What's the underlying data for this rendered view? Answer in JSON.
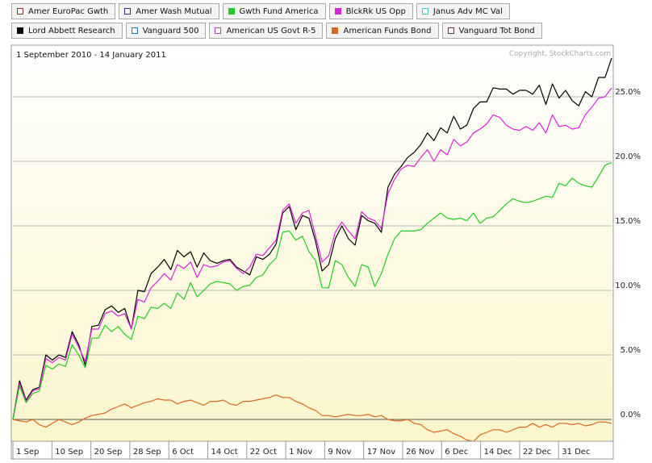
{
  "chart_data": {
    "type": "line",
    "title": "",
    "date_range": "1 September 2010 - 14 January 2011",
    "copyright": "Copyright, StockCharts.com",
    "legend": [
      {
        "name": "Amer EuroPac Gwth",
        "color": "#8b3a2a",
        "filled": false
      },
      {
        "name": "Amer Wash Mutual",
        "color": "#2b2b8a",
        "filled": false
      },
      {
        "name": "Gwth Fund America",
        "color": "#22cc22",
        "filled": true
      },
      {
        "name": "BlckRk US Opp",
        "color": "#dd22dd",
        "filled": true
      },
      {
        "name": "Janus Adv MC Val",
        "color": "#33cccc",
        "filled": false
      },
      {
        "name": "Lord Abbett Research",
        "color": "#000000",
        "filled": true
      },
      {
        "name": "Vanguard 500",
        "color": "#2277aa",
        "filled": false
      },
      {
        "name": "American US Govt R-5",
        "color": "#aa44aa",
        "filled": false
      },
      {
        "name": "American Funds Bond",
        "color": "#dd6622",
        "filled": true
      },
      {
        "name": "Vanguard Tot Bond",
        "color": "#6b3a2a",
        "filled": false
      }
    ],
    "x_tick_labels": [
      "1 Sep",
      "10 Sep",
      "20 Sep",
      "28 Sep",
      "6 Oct",
      "14 Oct",
      "22 Oct",
      "1 Nov",
      "9 Nov",
      "17 Nov",
      "26 Nov",
      "6 Dec",
      "14 Dec",
      "22 Dec",
      "31 Dec"
    ],
    "y_tick_labels": [
      "0.0%",
      "5.0%",
      "10.0%",
      "15.0%",
      "20.0%",
      "25.0%"
    ],
    "ylim": [
      -1.8,
      28.5
    ],
    "grid": true,
    "series": [
      {
        "name": "Lord Abbett Research",
        "color": "#000000",
        "values": [
          0.0,
          3.0,
          1.5,
          2.3,
          2.5,
          5.0,
          4.6,
          5.0,
          4.8,
          6.8,
          5.8,
          4.2,
          7.2,
          7.3,
          8.5,
          8.8,
          8.3,
          8.6,
          7.0,
          10.0,
          9.9,
          11.3,
          11.8,
          12.4,
          11.6,
          13.1,
          12.6,
          13.0,
          11.8,
          12.9,
          12.3,
          12.1,
          12.3,
          12.4,
          11.8,
          11.5,
          11.2,
          12.6,
          12.4,
          12.8,
          13.6,
          16.0,
          16.5,
          14.7,
          15.8,
          15.6,
          13.8,
          11.5,
          12.0,
          14.0,
          15.0,
          14.0,
          13.5,
          15.8,
          15.4,
          15.2,
          14.5,
          18.0,
          19.0,
          19.6,
          20.3,
          20.7,
          21.3,
          22.2,
          21.6,
          22.6,
          22.2,
          23.5,
          22.5,
          22.8,
          24.1,
          24.6,
          24.6,
          25.7,
          25.6,
          25.6,
          25.2,
          25.5,
          25.5,
          25.2,
          25.9,
          24.4,
          26.0,
          24.9,
          25.5,
          24.7,
          24.3,
          25.4,
          25.0,
          26.5,
          26.5,
          28.0
        ]
      },
      {
        "name": "BlckRk US Opp",
        "color": "#dd22dd",
        "values": [
          0.0,
          2.8,
          1.4,
          2.2,
          2.4,
          4.7,
          4.4,
          4.8,
          4.6,
          6.6,
          5.6,
          4.5,
          7.0,
          7.0,
          8.2,
          8.4,
          8.0,
          8.2,
          7.0,
          9.3,
          9.1,
          10.2,
          10.7,
          11.3,
          10.8,
          12.0,
          11.7,
          12.2,
          11.0,
          12.0,
          11.8,
          11.9,
          12.2,
          12.3,
          11.7,
          11.3,
          11.8,
          12.8,
          12.7,
          13.3,
          13.9,
          16.2,
          16.7,
          15.2,
          16.0,
          16.2,
          14.2,
          12.2,
          12.7,
          14.5,
          15.3,
          14.6,
          14.0,
          16.1,
          15.6,
          15.4,
          14.8,
          17.5,
          18.6,
          19.4,
          19.7,
          19.6,
          20.3,
          20.9,
          20.0,
          20.9,
          20.5,
          21.7,
          21.2,
          21.5,
          22.2,
          22.5,
          22.9,
          23.6,
          23.4,
          22.8,
          22.5,
          22.4,
          22.7,
          22.4,
          23.0,
          22.2,
          23.6,
          22.7,
          22.8,
          22.5,
          22.6,
          23.6,
          24.2,
          24.9,
          25.0,
          25.7
        ]
      },
      {
        "name": "Gwth Fund America",
        "color": "#22cc22",
        "values": [
          0.0,
          2.6,
          1.3,
          2.0,
          2.2,
          4.2,
          3.9,
          4.3,
          4.1,
          5.8,
          5.0,
          4.0,
          6.3,
          6.3,
          7.3,
          6.8,
          7.2,
          6.6,
          6.2,
          8.0,
          7.8,
          8.7,
          8.6,
          9.0,
          8.6,
          9.8,
          9.3,
          10.6,
          9.5,
          10.0,
          10.5,
          10.7,
          10.6,
          10.5,
          10.0,
          10.3,
          10.4,
          11.0,
          11.2,
          12.0,
          12.5,
          14.5,
          14.6,
          13.9,
          14.2,
          13.0,
          12.3,
          10.2,
          10.2,
          12.3,
          12.0,
          11.0,
          10.3,
          12.0,
          11.8,
          10.3,
          11.3,
          12.8,
          14.0,
          14.6,
          14.6,
          14.6,
          14.7,
          15.2,
          15.6,
          16.0,
          15.6,
          15.5,
          15.6,
          15.4,
          16.0,
          15.2,
          15.6,
          15.7,
          16.2,
          16.7,
          17.1,
          16.9,
          16.8,
          16.9,
          17.1,
          17.3,
          17.2,
          18.3,
          18.1,
          18.7,
          18.3,
          18.1,
          18.0,
          18.8,
          19.7,
          19.9
        ]
      },
      {
        "name": "American Funds Bond",
        "color": "#dd6622",
        "values": [
          0.0,
          -0.1,
          -0.2,
          0.0,
          -0.4,
          -0.6,
          -0.3,
          0.0,
          -0.2,
          -0.4,
          -0.2,
          0.1,
          0.3,
          0.4,
          0.5,
          0.8,
          1.0,
          1.2,
          0.9,
          1.1,
          1.3,
          1.4,
          1.6,
          1.5,
          1.5,
          1.2,
          1.4,
          1.5,
          1.3,
          1.1,
          1.4,
          1.4,
          1.5,
          1.2,
          1.1,
          1.4,
          1.4,
          1.5,
          1.6,
          1.7,
          1.9,
          1.7,
          1.7,
          1.4,
          1.2,
          0.9,
          0.7,
          0.3,
          0.3,
          0.2,
          0.3,
          0.4,
          0.3,
          0.3,
          0.4,
          0.2,
          0.3,
          0.0,
          -0.1,
          -0.1,
          0.0,
          -0.3,
          -0.4,
          -0.8,
          -1.0,
          -0.9,
          -0.8,
          -1.1,
          -1.3,
          -1.6,
          -1.7,
          -1.2,
          -1.0,
          -0.8,
          -0.8,
          -1.0,
          -0.8,
          -0.6,
          -0.6,
          -0.3,
          -0.6,
          -0.4,
          -0.6,
          -0.3,
          -0.3,
          -0.4,
          -0.3,
          -0.5,
          -0.4,
          -0.2,
          -0.2,
          -0.3
        ]
      }
    ]
  }
}
